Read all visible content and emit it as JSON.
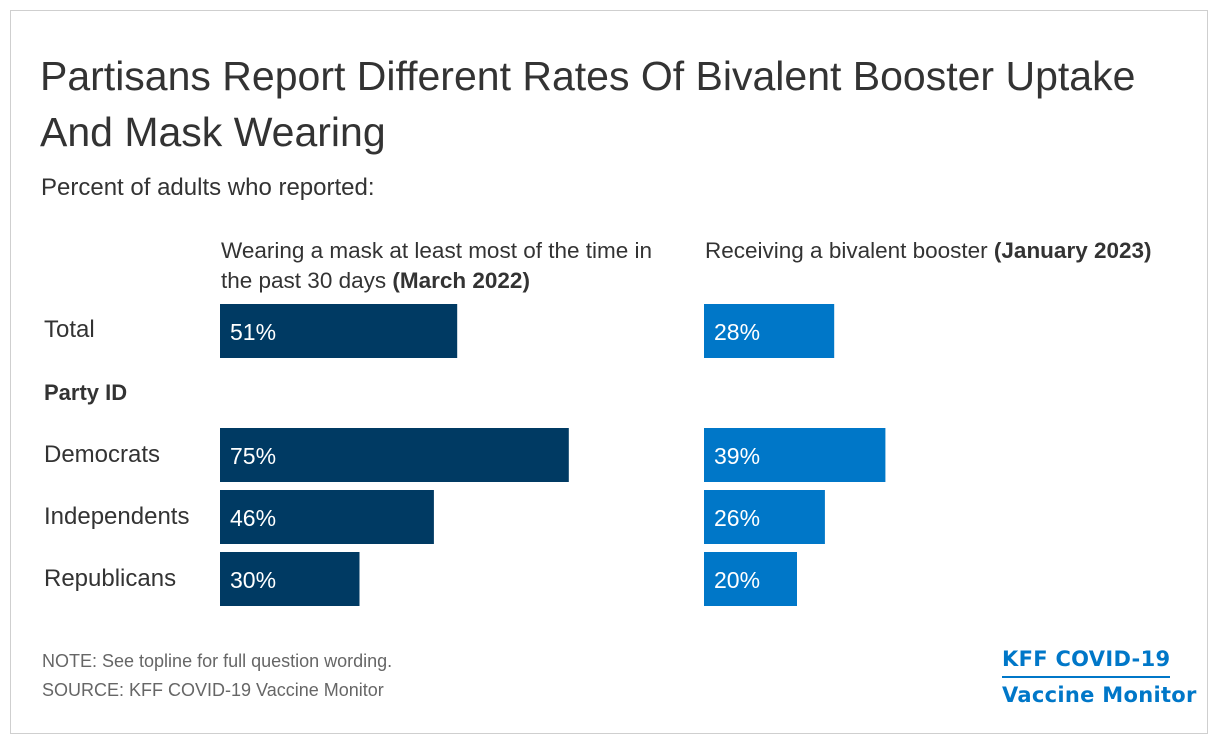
{
  "title": "Partisans Report Different Rates Of Bivalent Booster Uptake And Mask Wearing",
  "subtitle": "Percent of adults who reported:",
  "columns": {
    "mask": {
      "text": "Wearing a mask at least most of the time in the past 30 days ",
      "bold": "(March 2022)"
    },
    "booster": {
      "text": "Receiving a bivalent booster ",
      "bold": "(January 2023)"
    }
  },
  "group_label": "Party ID",
  "colors": {
    "mask": "#003a63",
    "booster": "#0077c8",
    "bar_text": "#ffffff"
  },
  "chart_data": {
    "type": "bar",
    "orientation": "horizontal",
    "categories": [
      "Total",
      "Democrats",
      "Independents",
      "Republicans"
    ],
    "series": [
      {
        "name": "Wearing a mask at least most of the time in the past 30 days (March 2022)",
        "values": [
          51,
          75,
          46,
          30
        ],
        "labels": [
          "51%",
          "75%",
          "46%",
          "30%"
        ]
      },
      {
        "name": "Receiving a bivalent booster (January 2023)",
        "values": [
          28,
          39,
          26,
          20
        ],
        "labels": [
          "28%",
          "39%",
          "26%",
          "20%"
        ]
      }
    ]
  },
  "note": "NOTE: See topline for full question wording.",
  "source": "SOURCE: KFF COVID-19 Vaccine Monitor",
  "logo": {
    "line1": "KFF COVID-19",
    "line2": "Vaccine Monitor"
  }
}
